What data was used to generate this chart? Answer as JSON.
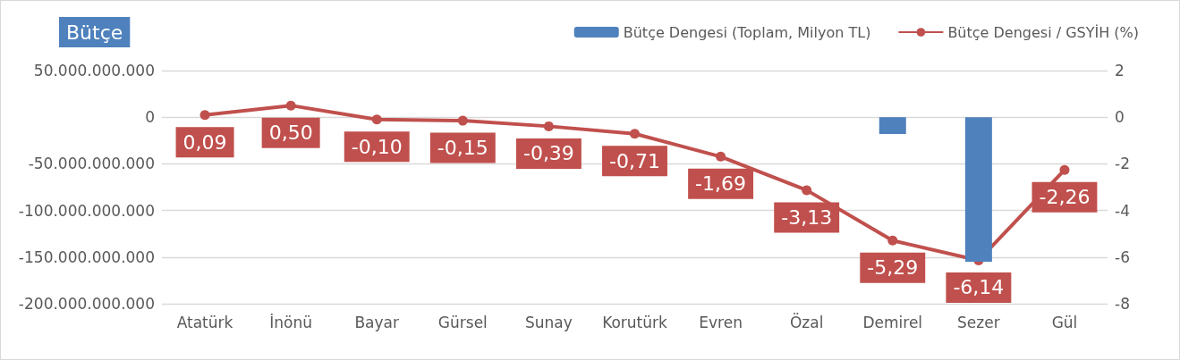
{
  "chart_data": {
    "type": "bar",
    "title": "Bütçe",
    "categories": [
      "Atatürk",
      "İnönü",
      "Bayar",
      "Gürsel",
      "Sunay",
      "Korutürk",
      "Evren",
      "Özal",
      "Demirel",
      "Sezer",
      "Gül"
    ],
    "series": [
      {
        "name": "Bütçe Dengesi (Toplam, Milyon TL)",
        "color": "#4f81bd",
        "values": [
          null,
          null,
          null,
          null,
          null,
          null,
          null,
          null,
          -18000000000,
          -155000000000,
          null
        ]
      },
      {
        "name": "Bütçe Dengesi / GSYİH (%)",
        "type": "line",
        "axis": "y2",
        "color": "#c0504d",
        "marker": "circle",
        "values": [
          0.09,
          0.5,
          -0.1,
          -0.15,
          -0.39,
          -0.71,
          -1.69,
          -3.13,
          -5.29,
          -6.14,
          -2.26
        ],
        "value_labels": [
          "0,09",
          "0,50",
          "-0,10",
          "-0,15",
          "-0,39",
          "-0,71",
          "-1,69",
          "-3,13",
          "-5,29",
          "-6,14",
          "-2,26"
        ]
      }
    ],
    "ylim": [
      -200000000000,
      50000000000
    ],
    "yticks": [
      {
        "value": -200000000000,
        "label": "-200.000.000.000"
      },
      {
        "value": -150000000000,
        "label": "-150.000.000.000"
      },
      {
        "value": -100000000000,
        "label": "-100.000.000.000"
      },
      {
        "value": -50000000000,
        "label": "-50.000.000.000"
      },
      {
        "value": 0,
        "label": "0"
      },
      {
        "value": 50000000000,
        "label": "50.000.000.000"
      }
    ],
    "y2lim": [
      -8,
      2
    ],
    "y2ticks": [
      -8,
      -6,
      -4,
      -2,
      0,
      2
    ],
    "grid": "y",
    "legend": "top right"
  }
}
